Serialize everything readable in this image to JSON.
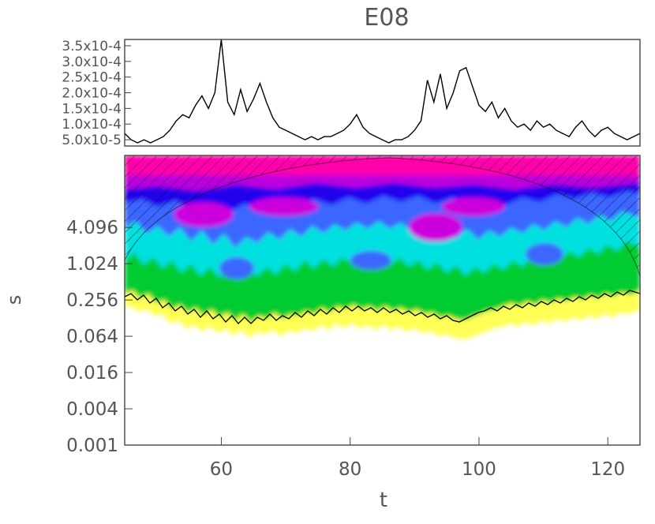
{
  "chart_data": [
    {
      "type": "line",
      "title": "E08",
      "xlabel": "",
      "ylabel": "",
      "xlim": [
        45,
        125
      ],
      "ylim": [
        3e-05,
        0.00037
      ],
      "y_ticks": [
        {
          "value": 5e-05,
          "label": "5.0x10-5"
        },
        {
          "value": 0.0001,
          "label": "1.0x10-4"
        },
        {
          "value": 0.00015,
          "label": "1.5x10-4"
        },
        {
          "value": 0.0002,
          "label": "2.0x10-4"
        },
        {
          "value": 0.00025,
          "label": "2.5x10-4"
        },
        {
          "value": 0.0003,
          "label": "3.0x10-4"
        },
        {
          "value": 0.00035,
          "label": "3.5x10-4"
        }
      ],
      "series": [
        {
          "x": [
            45,
            46,
            47,
            48,
            49,
            50,
            51,
            52,
            53,
            54,
            55,
            56,
            57,
            58,
            59,
            60,
            61,
            62,
            63,
            64,
            65,
            66,
            67,
            68,
            69,
            70,
            71,
            72,
            73,
            74,
            75,
            76,
            77,
            78,
            79,
            80,
            81,
            82,
            83,
            84,
            85,
            86,
            87,
            88,
            89,
            90,
            91,
            92,
            93,
            94,
            95,
            96,
            97,
            98,
            99,
            100,
            101,
            102,
            103,
            104,
            105,
            106,
            107,
            108,
            109,
            110,
            111,
            112,
            113,
            114,
            115,
            116,
            117,
            118,
            119,
            120,
            121,
            122,
            123,
            124,
            125
          ],
          "y": [
            7e-05,
            5e-05,
            4e-05,
            5e-05,
            4e-05,
            5e-05,
            6e-05,
            8e-05,
            0.00011,
            0.00013,
            0.00012,
            0.00016,
            0.00019,
            0.00015,
            0.0002,
            0.00037,
            0.00017,
            0.00013,
            0.00021,
            0.00014,
            0.00018,
            0.00023,
            0.00017,
            0.00012,
            9e-05,
            8e-05,
            7e-05,
            6e-05,
            5e-05,
            6e-05,
            5e-05,
            6e-05,
            6e-05,
            7e-05,
            8e-05,
            0.0001,
            0.00013,
            9e-05,
            7e-05,
            6e-05,
            5e-05,
            4e-05,
            5e-05,
            5e-05,
            6e-05,
            8e-05,
            0.00011,
            0.00024,
            0.00017,
            0.00026,
            0.00015,
            0.0002,
            0.00027,
            0.00028,
            0.00022,
            0.00016,
            0.00014,
            0.00017,
            0.00012,
            0.00015,
            0.00011,
            9e-05,
            0.0001,
            8e-05,
            0.00011,
            9e-05,
            0.0001,
            8e-05,
            7e-05,
            6e-05,
            9e-05,
            0.00011,
            8e-05,
            6e-05,
            8e-05,
            9e-05,
            7e-05,
            6e-05,
            5e-05,
            6e-05,
            7e-05
          ]
        }
      ]
    },
    {
      "type": "heatmap",
      "xlabel": "t",
      "ylabel": "s",
      "xlim": [
        45,
        125
      ],
      "y_scale": "log2",
      "ylim": [
        0.001,
        64
      ],
      "x_ticks": [
        60,
        80,
        100,
        120
      ],
      "x_tick_labels": [
        "60",
        "80",
        "100",
        "120"
      ],
      "y_ticks": [
        0.001,
        0.004,
        0.016,
        0.064,
        0.256,
        1.024,
        4.096
      ],
      "y_tick_labels": [
        "0.001",
        "0.004",
        "0.016",
        "0.064",
        "0.256",
        "1.024",
        "4.096"
      ],
      "colormap": [
        "#ffff44",
        "#00cc33",
        "#00e0e0",
        "#3a66ff",
        "#2200ee",
        "#cc00dd",
        "#ff00aa"
      ],
      "cone_of_influence": "hatched",
      "significance_contour_color": "#000000",
      "grid": false
    }
  ]
}
